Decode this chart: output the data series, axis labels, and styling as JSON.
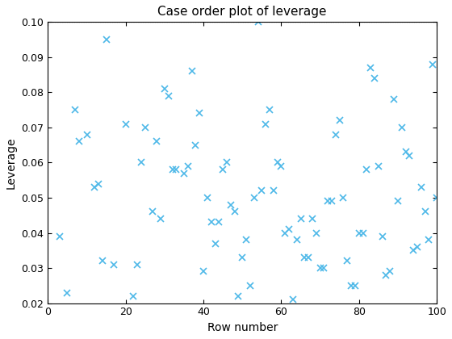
{
  "title": "Case order plot of leverage",
  "xlabel": "Row number",
  "ylabel": "Leverage",
  "xlim": [
    0,
    100
  ],
  "ylim": [
    0.02,
    0.1
  ],
  "reference_line_y": 0.1,
  "marker_color": "#4db8e8",
  "marker": "x",
  "markersize": 6,
  "linewidth": 1.2,
  "xticks": [
    0,
    20,
    40,
    60,
    80,
    100
  ],
  "yticks": [
    0.02,
    0.03,
    0.04,
    0.05,
    0.06,
    0.07,
    0.08,
    0.09,
    0.1
  ],
  "x": [
    3,
    5,
    7,
    8,
    10,
    12,
    13,
    14,
    15,
    17,
    20,
    22,
    23,
    24,
    25,
    27,
    28,
    29,
    30,
    31,
    32,
    33,
    35,
    36,
    37,
    38,
    39,
    40,
    41,
    42,
    43,
    44,
    45,
    46,
    47,
    48,
    49,
    50,
    51,
    52,
    53,
    54,
    55,
    56,
    57,
    58,
    59,
    60,
    61,
    62,
    63,
    64,
    65,
    66,
    67,
    68,
    69,
    70,
    71,
    72,
    73,
    74,
    75,
    76,
    77,
    78,
    79,
    80,
    81,
    82,
    83,
    84,
    85,
    86,
    87,
    88,
    89,
    90,
    91,
    92,
    93,
    94,
    95,
    96,
    97,
    98,
    99,
    100
  ],
  "y": [
    0.039,
    0.023,
    0.075,
    0.066,
    0.068,
    0.053,
    0.054,
    0.032,
    0.095,
    0.031,
    0.071,
    0.022,
    0.031,
    0.06,
    0.07,
    0.046,
    0.066,
    0.044,
    0.081,
    0.079,
    0.058,
    0.058,
    0.057,
    0.059,
    0.086,
    0.065,
    0.074,
    0.029,
    0.05,
    0.043,
    0.037,
    0.043,
    0.058,
    0.06,
    0.048,
    0.046,
    0.022,
    0.033,
    0.038,
    0.025,
    0.05,
    0.1,
    0.052,
    0.071,
    0.075,
    0.052,
    0.06,
    0.059,
    0.04,
    0.041,
    0.021,
    0.038,
    0.044,
    0.033,
    0.033,
    0.044,
    0.04,
    0.03,
    0.03,
    0.049,
    0.049,
    0.068,
    0.072,
    0.05,
    0.032,
    0.025,
    0.025,
    0.04,
    0.04,
    0.058,
    0.087,
    0.084,
    0.059,
    0.039,
    0.028,
    0.029,
    0.078,
    0.049,
    0.07,
    0.063,
    0.062,
    0.035,
    0.036,
    0.053,
    0.046,
    0.038,
    0.088,
    0.05
  ]
}
